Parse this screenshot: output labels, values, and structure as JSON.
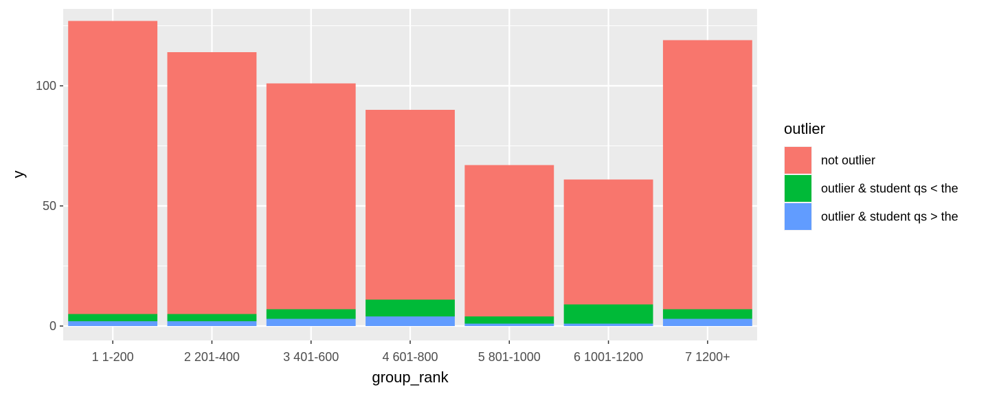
{
  "chart_data": {
    "type": "bar",
    "stacked": true,
    "title": "",
    "xlabel": "group_rank",
    "ylabel": "y",
    "ylim": [
      -6,
      132
    ],
    "yticks": [
      0,
      50,
      100
    ],
    "grid": true,
    "legend_position": "right",
    "legend_title": "outlier",
    "categories": [
      "1 1-200",
      "2 201-400",
      "3 401-600",
      "4 601-800",
      "5 801-1000",
      "6 1001-1200",
      "7 1200+"
    ],
    "series": [
      {
        "name": "outlier & student qs > the",
        "color": "#619CFF",
        "values": [
          2,
          2,
          3,
          4,
          1,
          1,
          3
        ]
      },
      {
        "name": "outlier & student qs < the",
        "color": "#00BA38",
        "values": [
          3,
          3,
          4,
          7,
          3,
          8,
          4
        ]
      },
      {
        "name": "not outlier",
        "color": "#F8766D",
        "values": [
          122,
          109,
          94,
          79,
          63,
          52,
          112
        ]
      }
    ],
    "legend_order": [
      "not outlier",
      "outlier & student qs < the",
      "outlier & student qs > the"
    ],
    "panel_background": "#EBEBEB",
    "grid_color": "#FFFFFF"
  }
}
